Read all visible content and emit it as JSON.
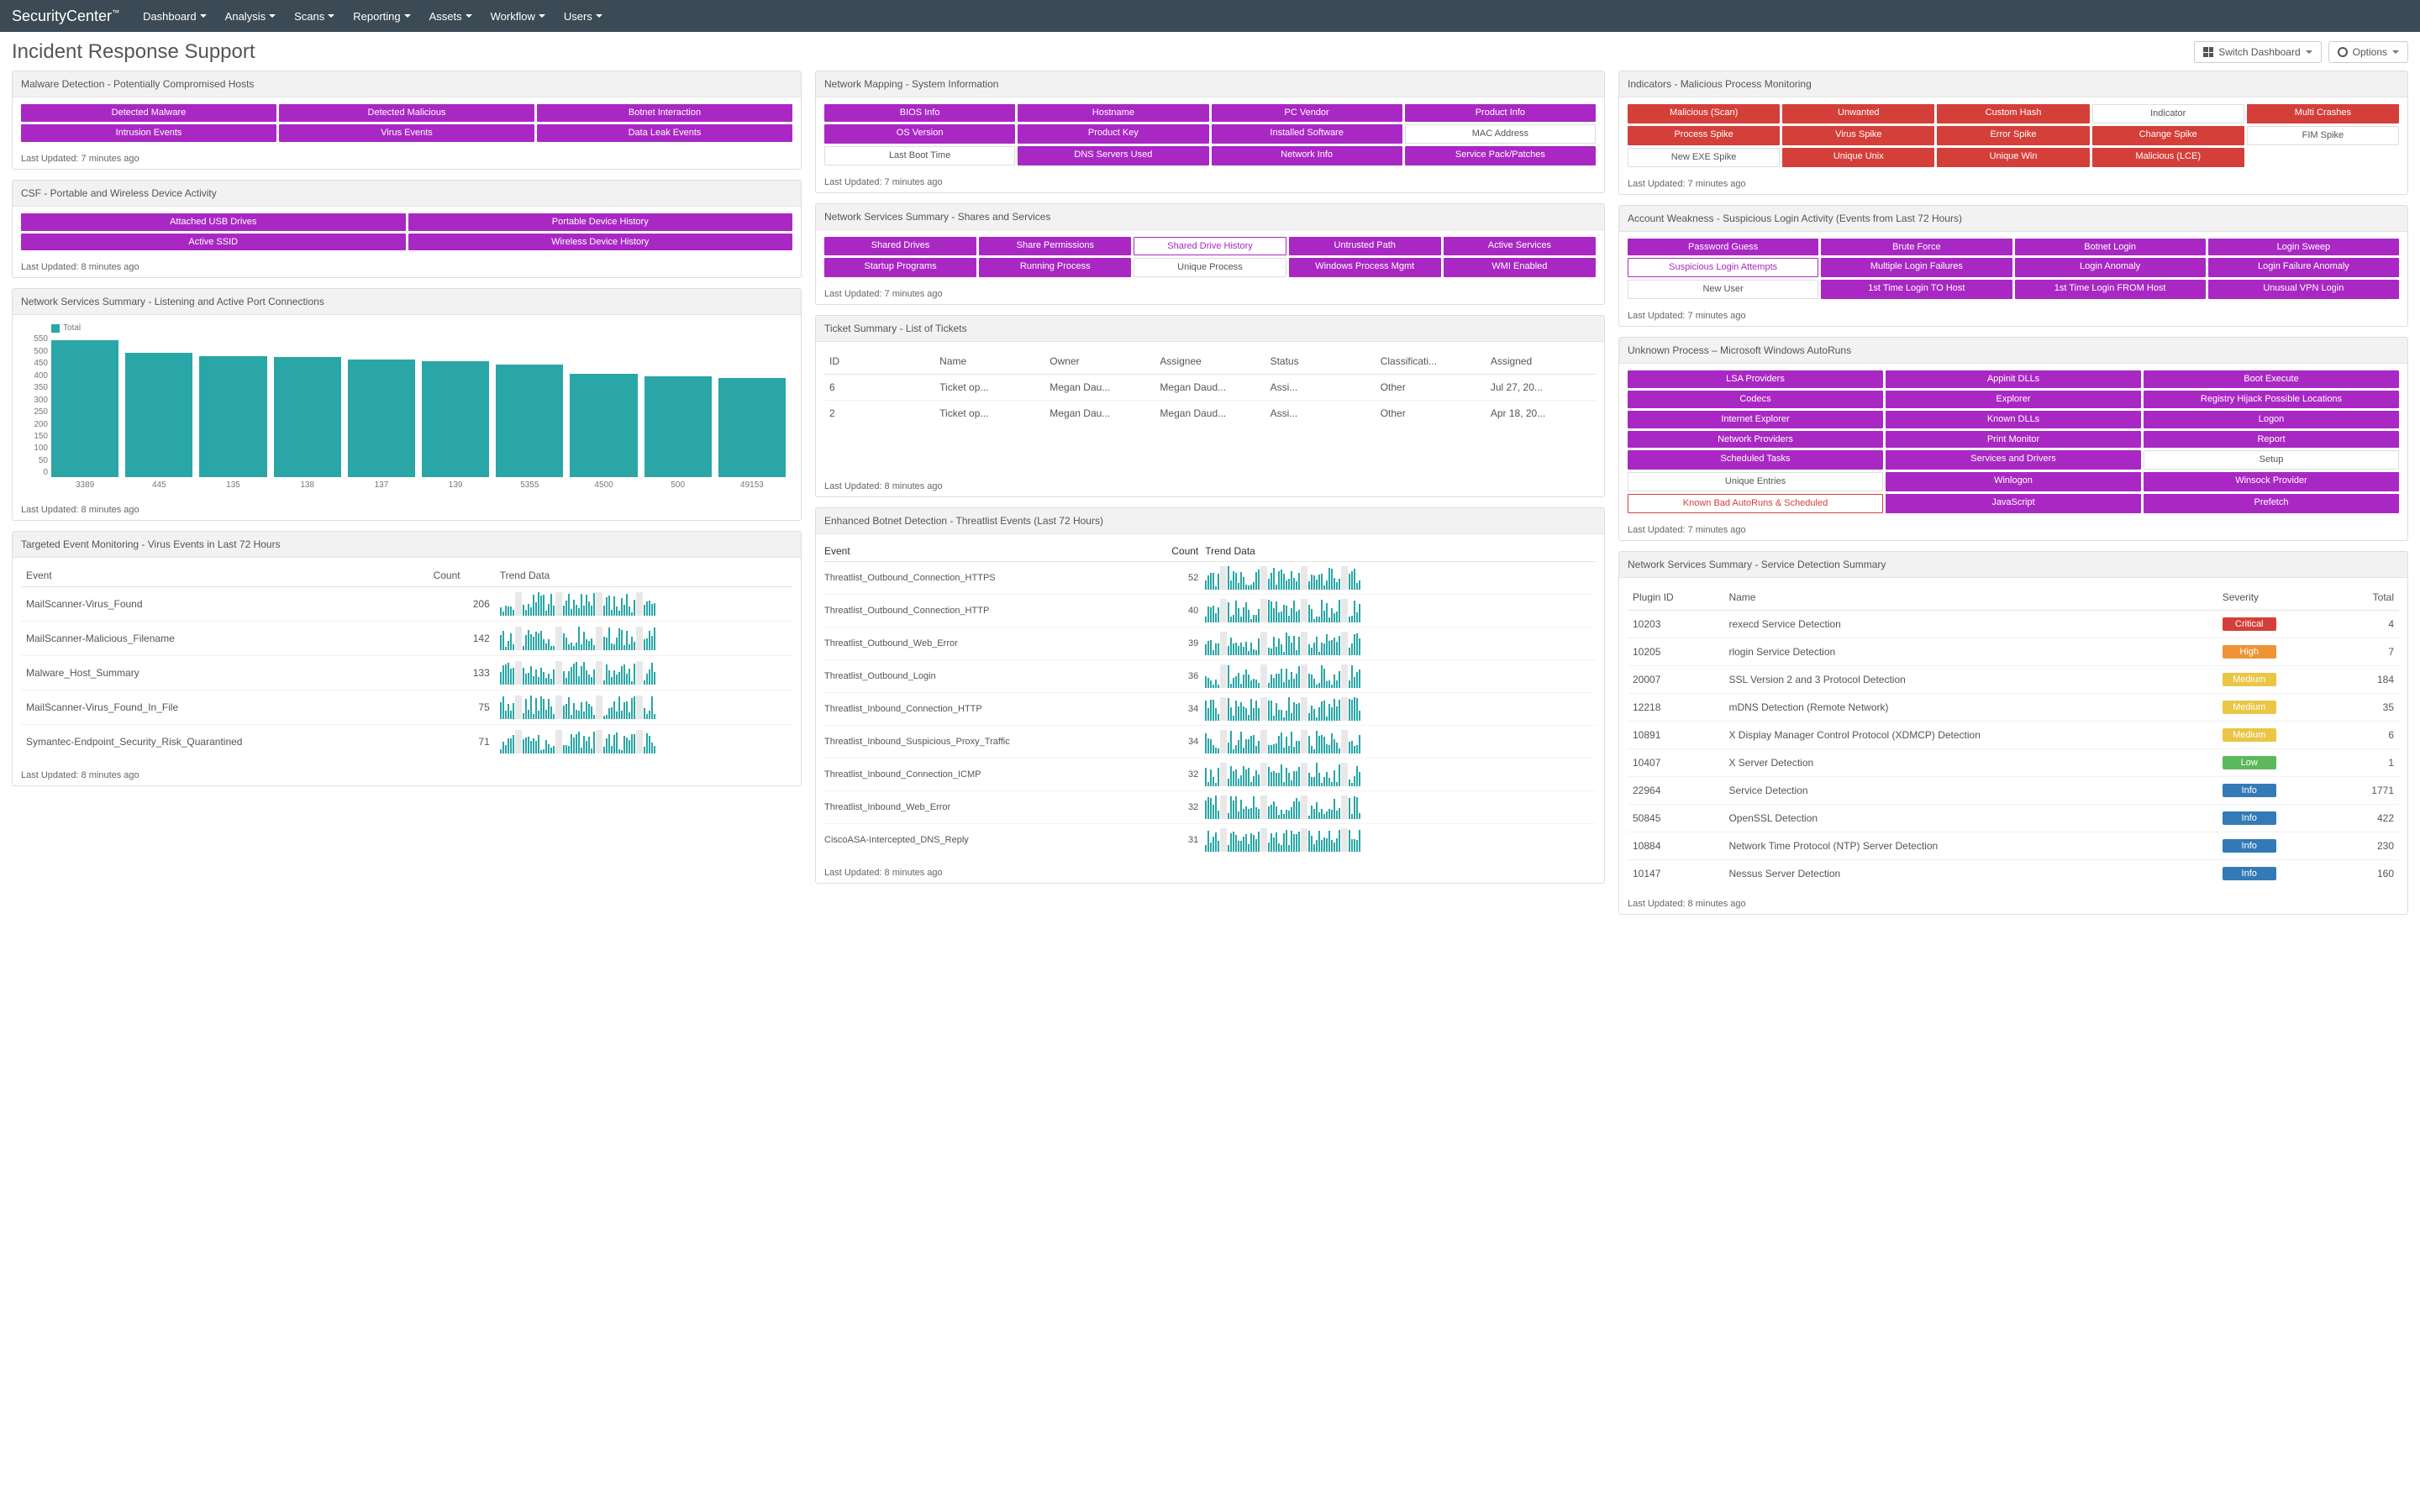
{
  "app": {
    "brand": "SecurityCenter",
    "tm": "™"
  },
  "nav": [
    "Dashboard",
    "Analysis",
    "Scans",
    "Reporting",
    "Assets",
    "Workflow",
    "Users"
  ],
  "page_title": "Incident Response Support",
  "buttons": {
    "switch": "Switch Dashboard",
    "options": "Options"
  },
  "upd7": "Last Updated: 7 minutes ago",
  "upd8": "Last Updated: 8 minutes ago",
  "panels": {
    "malware": {
      "title": "Malware Detection - Potentially Compromised Hosts",
      "tiles": [
        {
          "l": "Detected Malware",
          "c": "purple"
        },
        {
          "l": "Detected Malicious",
          "c": "purple"
        },
        {
          "l": "Botnet Interaction",
          "c": "purple"
        },
        {
          "l": "Intrusion Events",
          "c": "purple"
        },
        {
          "l": "Virus Events",
          "c": "purple"
        },
        {
          "l": "Data Leak Events",
          "c": "purple"
        }
      ]
    },
    "csf": {
      "title": "CSF - Portable and Wireless Device Activity",
      "tiles": [
        {
          "l": "Attached USB Drives",
          "c": "purple"
        },
        {
          "l": "Portable Device History",
          "c": "purple"
        },
        {
          "l": "Active SSID",
          "c": "purple"
        },
        {
          "l": "Wireless Device History",
          "c": "purple"
        }
      ]
    },
    "ports": {
      "title": "Network Services Summary - Listening and Active Port Connections",
      "legend": "Total",
      "yticks": [
        "550",
        "500",
        "450",
        "400",
        "350",
        "300",
        "250",
        "200",
        "150",
        "100",
        "50",
        "0"
      ],
      "bars": [
        {
          "l": "3389",
          "v": 570
        },
        {
          "l": "445",
          "v": 520
        },
        {
          "l": "135",
          "v": 505
        },
        {
          "l": "138",
          "v": 500
        },
        {
          "l": "137",
          "v": 490
        },
        {
          "l": "139",
          "v": 485
        },
        {
          "l": "5355",
          "v": 470
        },
        {
          "l": "4500",
          "v": 430
        },
        {
          "l": "500",
          "v": 420
        },
        {
          "l": "49153",
          "v": 415
        }
      ],
      "ymax": 580
    },
    "virus": {
      "title": "Targeted Event Monitoring - Virus Events in Last 72 Hours",
      "cols": [
        "Event",
        "Count",
        "Trend Data"
      ],
      "rows": [
        {
          "e": "MailScanner-Virus_Found",
          "c": 206
        },
        {
          "e": "MailScanner-Malicious_Filename",
          "c": 142
        },
        {
          "e": "Malware_Host_Summary",
          "c": 133
        },
        {
          "e": "MailScanner-Virus_Found_In_File",
          "c": 75
        },
        {
          "e": "Symantec-Endpoint_Security_Risk_Quarantined",
          "c": 71
        }
      ]
    },
    "sysinfo": {
      "title": "Network Mapping - System Information",
      "tiles": [
        {
          "l": "BIOS Info",
          "c": "purple"
        },
        {
          "l": "Hostname",
          "c": "purple"
        },
        {
          "l": "PC Vendor",
          "c": "purple"
        },
        {
          "l": "Product Info",
          "c": "purple"
        },
        {
          "l": "OS Version",
          "c": "purple"
        },
        {
          "l": "Product Key",
          "c": "purple"
        },
        {
          "l": "Installed Software",
          "c": "purple"
        },
        {
          "l": "MAC Address",
          "c": "white"
        },
        {
          "l": "Last Boot Time",
          "c": "white"
        },
        {
          "l": "DNS Servers Used",
          "c": "purple"
        },
        {
          "l": "Network Info",
          "c": "purple"
        },
        {
          "l": "Service Pack/Patches",
          "c": "purple"
        }
      ]
    },
    "shares": {
      "title": "Network Services Summary - Shares and Services",
      "tiles": [
        {
          "l": "Shared Drives",
          "c": "purple"
        },
        {
          "l": "Share Permissions",
          "c": "purple"
        },
        {
          "l": "Shared Drive History",
          "c": "whitepurple"
        },
        {
          "l": "Untrusted Path",
          "c": "purple"
        },
        {
          "l": "Active Services",
          "c": "purple"
        },
        {
          "l": "Startup Programs",
          "c": "purple"
        },
        {
          "l": "Running Process",
          "c": "purple"
        },
        {
          "l": "Unique Process",
          "c": "white"
        },
        {
          "l": "Windows Process Mgmt",
          "c": "purple"
        },
        {
          "l": "WMI Enabled",
          "c": "purple"
        }
      ]
    },
    "tickets": {
      "title": "Ticket Summary - List of Tickets",
      "cols": [
        "ID",
        "Name",
        "Owner",
        "Assignee",
        "Status",
        "Classificati...",
        "Assigned"
      ],
      "rows": [
        {
          "id": "6",
          "n": "Ticket op...",
          "o": "Megan Dau...",
          "a": "Megan Daud...",
          "s": "Assi...",
          "cl": "Other",
          "as": "Jul 27, 20..."
        },
        {
          "id": "2",
          "n": "Ticket op...",
          "o": "Megan Dau...",
          "a": "Megan Daud...",
          "s": "Assi...",
          "cl": "Other",
          "as": "Apr 18, 20..."
        }
      ]
    },
    "botnet": {
      "title": "Enhanced Botnet Detection - Threatlist Events (Last 72 Hours)",
      "cols": [
        "Event",
        "Count",
        "Trend Data"
      ],
      "rows": [
        {
          "e": "Threatlist_Outbound_Connection_HTTPS",
          "c": 52
        },
        {
          "e": "Threatlist_Outbound_Connection_HTTP",
          "c": 40
        },
        {
          "e": "Threatlist_Outbound_Web_Error",
          "c": 39
        },
        {
          "e": "Threatlist_Outbound_Login",
          "c": 36
        },
        {
          "e": "Threatlist_Inbound_Connection_HTTP",
          "c": 34
        },
        {
          "e": "Threatlist_Inbound_Suspicious_Proxy_Traffic",
          "c": 34
        },
        {
          "e": "Threatlist_Inbound_Connection_ICMP",
          "c": 32
        },
        {
          "e": "Threatlist_Inbound_Web_Error",
          "c": 32
        },
        {
          "e": "CiscoASA-Intercepted_DNS_Reply",
          "c": 31
        }
      ]
    },
    "indicators": {
      "title": "Indicators - Malicious Process Monitoring",
      "tiles": [
        {
          "l": "Malicious (Scan)",
          "c": "red"
        },
        {
          "l": "Unwanted",
          "c": "red"
        },
        {
          "l": "Custom Hash",
          "c": "red"
        },
        {
          "l": "Indicator",
          "c": "white"
        },
        {
          "l": "Multi Crashes",
          "c": "red"
        },
        {
          "l": "Process Spike",
          "c": "red"
        },
        {
          "l": "Virus Spike",
          "c": "red"
        },
        {
          "l": "Error Spike",
          "c": "red"
        },
        {
          "l": "Change Spike",
          "c": "red"
        },
        {
          "l": "FIM Spike",
          "c": "white"
        },
        {
          "l": "New EXE Spike",
          "c": "white"
        },
        {
          "l": "Unique Unix",
          "c": "red"
        },
        {
          "l": "Unique Win",
          "c": "red"
        },
        {
          "l": "Malicious (LCE)",
          "c": "red"
        }
      ]
    },
    "account": {
      "title": "Account Weakness - Suspicious Login Activity (Events from Last 72 Hours)",
      "tiles": [
        {
          "l": "Password Guess",
          "c": "purple"
        },
        {
          "l": "Brute Force",
          "c": "purple"
        },
        {
          "l": "Botnet Login",
          "c": "purple"
        },
        {
          "l": "Login Sweep",
          "c": "purple"
        },
        {
          "l": "Suspicious Login Attempts",
          "c": "whitepurple"
        },
        {
          "l": "Multiple Login Failures",
          "c": "purple"
        },
        {
          "l": "Login Anomaly",
          "c": "purple"
        },
        {
          "l": "Login Failure Anomaly",
          "c": "purple"
        },
        {
          "l": "New User",
          "c": "white"
        },
        {
          "l": "1st Time Login TO Host",
          "c": "purple"
        },
        {
          "l": "1st Time Login FROM Host",
          "c": "purple"
        },
        {
          "l": "Unusual VPN Login",
          "c": "purple"
        }
      ]
    },
    "autoruns": {
      "title": "Unknown Process – Microsoft Windows AutoRuns",
      "tiles": [
        {
          "l": "LSA Providers",
          "c": "purple"
        },
        {
          "l": "Appinit DLLs",
          "c": "purple"
        },
        {
          "l": "Boot Execute",
          "c": "purple"
        },
        {
          "l": "Codecs",
          "c": "purple"
        },
        {
          "l": "Explorer",
          "c": "purple"
        },
        {
          "l": "Registry Hijack Possible Locations",
          "c": "purple"
        },
        {
          "l": "Internet Explorer",
          "c": "purple"
        },
        {
          "l": "Known DLLs",
          "c": "purple"
        },
        {
          "l": "Logon",
          "c": "purple"
        },
        {
          "l": "Network Providers",
          "c": "purple"
        },
        {
          "l": "Print Monitor",
          "c": "purple"
        },
        {
          "l": "Report",
          "c": "purple"
        },
        {
          "l": "Scheduled Tasks",
          "c": "purple"
        },
        {
          "l": "Services and Drivers",
          "c": "purple"
        },
        {
          "l": "Setup",
          "c": "white"
        },
        {
          "l": "Unique Entries",
          "c": "white"
        },
        {
          "l": "Winlogon",
          "c": "purple"
        },
        {
          "l": "Winsock Provider",
          "c": "purple"
        },
        {
          "l": "Known Bad AutoRuns & Scheduled",
          "c": "whitered"
        },
        {
          "l": "JavaScript",
          "c": "purple"
        },
        {
          "l": "Prefetch",
          "c": "purple"
        }
      ]
    },
    "svcdetect": {
      "title": "Network Services Summary - Service Detection Summary",
      "cols": [
        "Plugin ID",
        "Name",
        "Severity",
        "Total"
      ],
      "rows": [
        {
          "p": "10203",
          "n": "rexecd Service Detection",
          "s": "Critical",
          "sc": "critical",
          "t": 4
        },
        {
          "p": "10205",
          "n": "rlogin Service Detection",
          "s": "High",
          "sc": "high",
          "t": 7
        },
        {
          "p": "20007",
          "n": "SSL Version 2 and 3 Protocol Detection",
          "s": "Medium",
          "sc": "medium",
          "t": 184
        },
        {
          "p": "12218",
          "n": "mDNS Detection (Remote Network)",
          "s": "Medium",
          "sc": "medium",
          "t": 35
        },
        {
          "p": "10891",
          "n": "X Display Manager Control Protocol (XDMCP) Detection",
          "s": "Medium",
          "sc": "medium",
          "t": 6
        },
        {
          "p": "10407",
          "n": "X Server Detection",
          "s": "Low",
          "sc": "low",
          "t": 1
        },
        {
          "p": "22964",
          "n": "Service Detection",
          "s": "Info",
          "sc": "info",
          "t": 1771
        },
        {
          "p": "50845",
          "n": "OpenSSL Detection",
          "s": "Info",
          "sc": "info",
          "t": 422
        },
        {
          "p": "10884",
          "n": "Network Time Protocol (NTP) Server Detection",
          "s": "Info",
          "sc": "info",
          "t": 230
        },
        {
          "p": "10147",
          "n": "Nessus Server Detection",
          "s": "Info",
          "sc": "info",
          "t": 160
        }
      ]
    }
  }
}
